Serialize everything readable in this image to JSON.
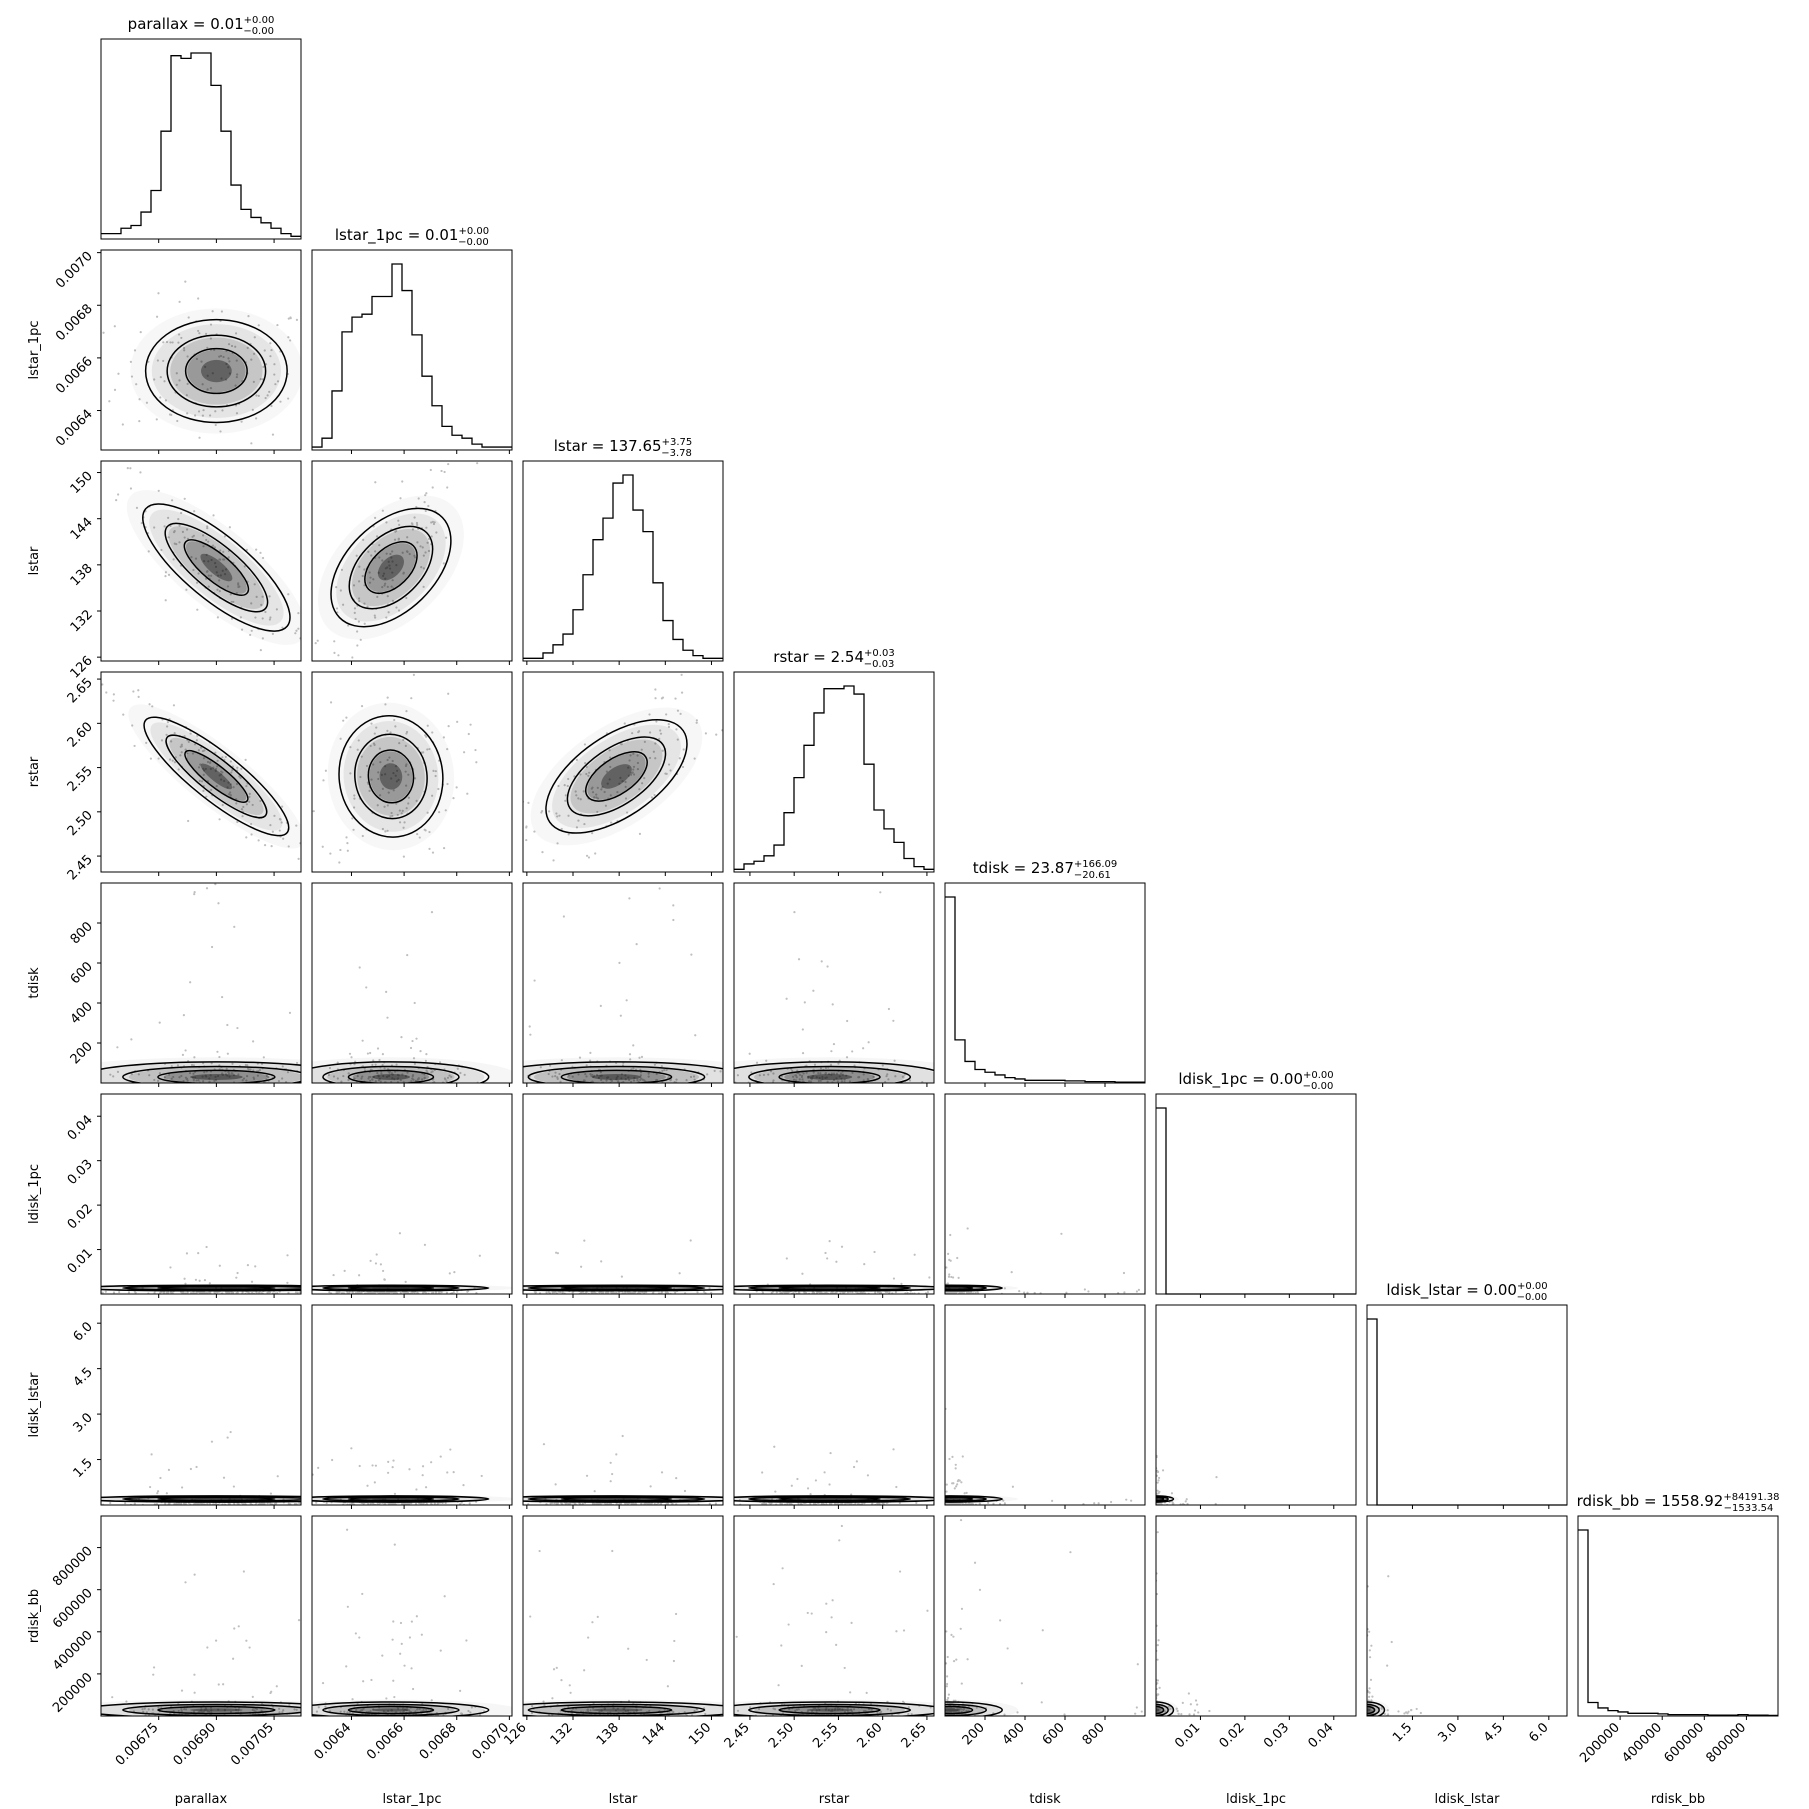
{
  "chart_data": {
    "type": "corner",
    "parameters": [
      {
        "name": "parallax",
        "range": [
          0.0066,
          0.00712
        ],
        "ticks": [
          0.00675,
          0.0069,
          0.00705
        ],
        "tick_labels": [
          "0.00675",
          "0.00690",
          "0.00705"
        ],
        "median": 0.0069,
        "sigma": 8e-05,
        "title": {
          "main": "parallax = 0.01",
          "sup": "+0.00",
          "sub": "−0.00"
        },
        "hist": [
          2,
          2,
          4,
          5,
          10,
          18,
          40,
          68,
          67,
          69,
          69,
          57,
          40,
          20,
          11,
          8,
          6,
          4,
          2,
          1
        ]
      },
      {
        "name": "lstar_1pc",
        "range": [
          0.00625,
          0.00701
        ],
        "ticks": [
          0.0064,
          0.0066,
          0.0068,
          0.007
        ],
        "tick_labels": [
          "0.0064",
          "0.0066",
          "0.0068",
          "0.0070"
        ],
        "median": 0.00655,
        "sigma": 8.5e-05,
        "title": {
          "main": "lstar_1pc = 0.01",
          "sup": "+0.00",
          "sub": "−0.00"
        },
        "hist": [
          1,
          4,
          20,
          40,
          45,
          46,
          52,
          52,
          63,
          54,
          39,
          25,
          15,
          8,
          5,
          4,
          2,
          1,
          1,
          1
        ]
      },
      {
        "name": "lstar",
        "range": [
          125.5,
          151.5
        ],
        "ticks": [
          126,
          132,
          138,
          144,
          150
        ],
        "tick_labels": [
          "126",
          "132",
          "138",
          "144",
          "150"
        ],
        "median": 137.65,
        "sigma": 3.77,
        "title": {
          "main": "lstar = 137.65",
          "sup": "+3.75",
          "sub": "−3.78"
        },
        "hist": [
          1,
          1,
          3,
          6,
          10,
          19,
          32,
          45,
          53,
          66,
          69,
          56,
          48,
          29,
          15,
          8,
          4,
          2,
          1,
          1
        ]
      },
      {
        "name": "rstar",
        "range": [
          2.432,
          2.658
        ],
        "ticks": [
          2.45,
          2.5,
          2.55,
          2.6,
          2.65
        ],
        "tick_labels": [
          "2.45",
          "2.50",
          "2.55",
          "2.60",
          "2.65"
        ],
        "median": 2.54,
        "sigma": 0.03,
        "title": {
          "main": "rstar = 2.54",
          "sup": "+0.03",
          "sub": "−0.03"
        },
        "hist": [
          1,
          3,
          4,
          6,
          10,
          22,
          35,
          47,
          59,
          68,
          68,
          69,
          66,
          40,
          23,
          16,
          11,
          5,
          2,
          1
        ]
      },
      {
        "name": "tdisk",
        "range": [
          0,
          1000
        ],
        "ticks": [
          200,
          400,
          600,
          800
        ],
        "tick_labels": [
          "200",
          "400",
          "600",
          "800"
        ],
        "median": 23.87,
        "sigma": 60,
        "title": {
          "main": "tdisk = 23.87",
          "sup": "+166.09",
          "sub": "−20.61"
        },
        "hist": [
          69,
          16,
          8,
          5,
          4,
          3,
          2,
          1.5,
          1,
          1,
          1,
          1,
          0.8,
          0.8,
          0.5,
          0.5,
          0.5,
          0.3,
          0.3,
          0.3
        ]
      },
      {
        "name": "ldisk_1pc",
        "range": [
          0,
          0.045
        ],
        "ticks": [
          0.01,
          0.02,
          0.03,
          0.04
        ],
        "tick_labels": [
          "0.01",
          "0.02",
          "0.03",
          "0.04"
        ],
        "median": 0.0,
        "sigma": 0.0005,
        "title": {
          "main": "ldisk_1pc = 0.00",
          "sup": "+0.00",
          "sub": "−0.00"
        },
        "hist": [
          69,
          0,
          0,
          0,
          0,
          0,
          0,
          0,
          0,
          0,
          0,
          0,
          0,
          0,
          0,
          0,
          0,
          0,
          0,
          0
        ]
      },
      {
        "name": "ldisk_lstar",
        "range": [
          0,
          6.6
        ],
        "ticks": [
          1.5,
          3.0,
          4.5,
          6.0
        ],
        "tick_labels": [
          "1.5",
          "3.0",
          "4.5",
          "6.0"
        ],
        "median": 0.0,
        "sigma": 0.08,
        "title": {
          "main": "ldisk_lstar = 0.00",
          "sup": "+0.00",
          "sub": "−0.00"
        },
        "hist": [
          69,
          0,
          0,
          0,
          0,
          0,
          0,
          0,
          0,
          0,
          0,
          0,
          0,
          0,
          0,
          0,
          0,
          0,
          0,
          0
        ]
      },
      {
        "name": "rdisk_bb",
        "range": [
          0,
          950000
        ],
        "ticks": [
          200000,
          400000,
          600000,
          800000
        ],
        "tick_labels": [
          "200000",
          "400000",
          "600000",
          "800000"
        ],
        "median": 1558.92,
        "sigma": 30000,
        "title": {
          "main": "rdisk_bb = 1558.92",
          "sup": "+84191.38",
          "sub": "−1533.54"
        },
        "hist": [
          69,
          5,
          3,
          2,
          1.5,
          1,
          1,
          1,
          0.8,
          0.5,
          0.5,
          0.5,
          0.5,
          0.3,
          0.3,
          0.3,
          0.5,
          0.3,
          0.3,
          0.2
        ]
      }
    ],
    "correlations": [
      [
        1,
        0,
        -0.88,
        -0.92,
        0,
        0,
        0,
        0
      ],
      [
        0,
        1,
        0.75,
        0.1,
        0,
        0,
        0,
        0
      ],
      [
        -0.88,
        0.75,
        1,
        0.75,
        0,
        0,
        0,
        0
      ],
      [
        -0.92,
        0.1,
        0.75,
        1,
        0,
        0,
        0,
        0
      ],
      [
        0,
        0,
        0,
        0,
        1,
        0,
        0,
        0
      ],
      [
        0,
        0,
        0,
        0,
        0,
        1,
        0,
        0
      ],
      [
        0,
        0,
        0,
        0,
        0,
        0,
        1,
        0
      ],
      [
        0,
        0,
        0,
        0,
        0,
        0,
        0,
        1
      ]
    ],
    "colors": {
      "line": "#000000",
      "density": "#000000",
      "points": "#bfbfbf"
    }
  }
}
